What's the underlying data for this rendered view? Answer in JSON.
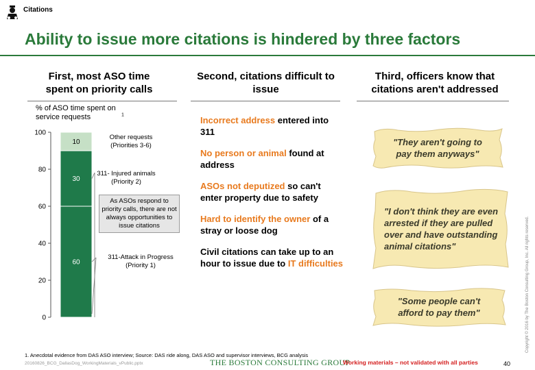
{
  "header": {
    "section_label": "Citations"
  },
  "title": "Ability to issue more citations is hindered by three factors",
  "columns": [
    {
      "heading": "First, most ASO time spent on priority calls"
    },
    {
      "heading": "Second, citations difficult to issue"
    },
    {
      "heading": "Third, officers know that citations aren't addressed"
    }
  ],
  "chart_data": {
    "type": "bar",
    "title": "% of ASO time spent on service requests",
    "title_footnote_mark": "1",
    "ylim": [
      0,
      100
    ],
    "yticks": [
      "0",
      "20",
      "40",
      "60",
      "80",
      "100"
    ],
    "stacked": true,
    "segments": [
      {
        "value": 60,
        "label": "60",
        "name": "311-Attack in Progress (Priority 1)",
        "color": "#1f7a4a"
      },
      {
        "value": 30,
        "label": "30",
        "name": "311- Injured animals (Priority 2)",
        "color": "#1f7a4a"
      },
      {
        "value": 10,
        "label": "10",
        "name": "Other requests (Priorities 3-6)",
        "color": "#c6e0c6"
      }
    ],
    "callout": "As ASOs respond to priority calls, there are not always opportunities to issue citations"
  },
  "reasons": [
    {
      "highlight": "Incorrect address",
      "rest": " entered into 311"
    },
    {
      "highlight": "No person or animal",
      "rest": " found at address"
    },
    {
      "highlight": "ASOs not deputized",
      "rest": " so can't enter property due to safety"
    },
    {
      "highlight": "Hard to identify the owner",
      "rest": " of a stray or loose dog"
    },
    {
      "prefix": "Civil citations can take up to an hour to issue due to ",
      "highlight": "IT difficulties"
    }
  ],
  "quotes": [
    "\"They aren't going to pay them anyways\"",
    "\"I don't think they are even arrested if they are pulled over and have outstanding animal citations\"",
    "\"Some people can't afford to pay them\""
  ],
  "footer": {
    "footnote": "1. Anecdotal evidence from DAS ASO interview; Source: DAS ride along, DAS ASO and supervisor interviews, BCG analysis",
    "filename": "20160826_BCG_DallasDog_WorkingMaterials_vPublic.pptx",
    "logo": "THE BOSTON CONSULTING GROUP",
    "warning": "Working materials – not validated with all parties",
    "page": "40",
    "copyright": "Copyright © 2016 by The Boston Consulting Group, Inc. All rights reserved."
  },
  "colors": {
    "title_green": "#2a7a3a",
    "accent_orange": "#e87a1e",
    "warning_red": "#d42020",
    "scroll_fill": "#f7e9b2"
  }
}
